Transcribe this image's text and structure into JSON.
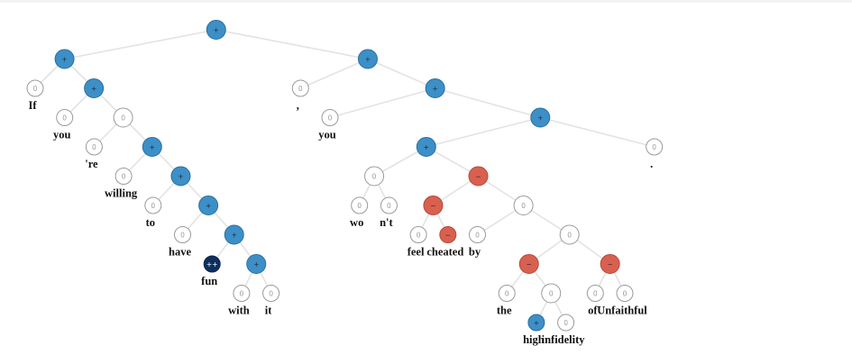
{
  "colors": {
    "neutral_fill": "#ffffff",
    "neutral_stroke": "#9a9a9a",
    "neutral_text": "#9a9a9a",
    "positive_fill": "#3d8fc7",
    "positive_stroke": "#2a6f9e",
    "very_positive_fill": "#0d2f5e",
    "very_positive_stroke": "#0a2448",
    "negative_fill": "#d9604f",
    "negative_stroke": "#b34a3b",
    "sign_text": "#1a2b3c",
    "sign_text_light": "#ffffff",
    "edge": "#e3e3e3"
  },
  "labels": {
    "neutral": "0",
    "positive": "+",
    "very_positive": "++",
    "negative": "−"
  },
  "tree": {
    "sentiment": "positive",
    "children": [
      {
        "sentiment": "positive",
        "children": [
          {
            "sentiment": "neutral",
            "word": "If"
          },
          {
            "sentiment": "positive",
            "children": [
              {
                "sentiment": "neutral",
                "word": "you"
              },
              {
                "sentiment": "neutral",
                "children": [
                  {
                    "sentiment": "neutral",
                    "word": "'re"
                  },
                  {
                    "sentiment": "positive",
                    "children": [
                      {
                        "sentiment": "neutral",
                        "word": "willing"
                      },
                      {
                        "sentiment": "positive",
                        "children": [
                          {
                            "sentiment": "neutral",
                            "word": "to"
                          },
                          {
                            "sentiment": "positive",
                            "children": [
                              {
                                "sentiment": "neutral",
                                "word": "have"
                              },
                              {
                                "sentiment": "positive",
                                "children": [
                                  {
                                    "sentiment": "very_positive",
                                    "word": "fun"
                                  },
                                  {
                                    "sentiment": "positive",
                                    "children": [
                                      {
                                        "sentiment": "neutral",
                                        "word": "with"
                                      },
                                      {
                                        "sentiment": "neutral",
                                        "word": "it"
                                      }
                                    ]
                                  }
                                ]
                              }
                            ]
                          }
                        ]
                      }
                    ]
                  }
                ]
              }
            ]
          }
        ]
      },
      {
        "sentiment": "positive",
        "children": [
          {
            "sentiment": "neutral",
            "word": ","
          },
          {
            "sentiment": "positive",
            "children": [
              {
                "sentiment": "neutral",
                "word": "you"
              },
              {
                "sentiment": "positive",
                "children": [
                  {
                    "sentiment": "positive",
                    "children": [
                      {
                        "sentiment": "neutral",
                        "children": [
                          {
                            "sentiment": "neutral",
                            "word": "wo"
                          },
                          {
                            "sentiment": "neutral",
                            "word": "n't"
                          }
                        ]
                      },
                      {
                        "sentiment": "negative",
                        "children": [
                          {
                            "sentiment": "negative",
                            "children": [
                              {
                                "sentiment": "neutral",
                                "word": "feel"
                              },
                              {
                                "sentiment": "negative",
                                "word": "cheated"
                              }
                            ]
                          },
                          {
                            "sentiment": "neutral",
                            "children": [
                              {
                                "sentiment": "neutral",
                                "word": "by"
                              },
                              {
                                "sentiment": "neutral",
                                "children": [
                                  {
                                    "sentiment": "negative",
                                    "children": [
                                      {
                                        "sentiment": "neutral",
                                        "word": "the"
                                      },
                                      {
                                        "sentiment": "neutral",
                                        "children": [
                                          {
                                            "sentiment": "positive",
                                            "word": "high"
                                          },
                                          {
                                            "sentiment": "neutral",
                                            "word": "infidelity"
                                          }
                                        ]
                                      }
                                    ]
                                  },
                                  {
                                    "sentiment": "negative",
                                    "children": [
                                      {
                                        "sentiment": "neutral",
                                        "word": "of"
                                      },
                                      {
                                        "sentiment": "neutral",
                                        "word": "Unfaithful"
                                      }
                                    ]
                                  }
                                ]
                              }
                            ]
                          }
                        ]
                      }
                    ]
                  },
                  {
                    "sentiment": "neutral",
                    "word": "."
                  }
                ]
              }
            ]
          }
        ]
      }
    ]
  }
}
